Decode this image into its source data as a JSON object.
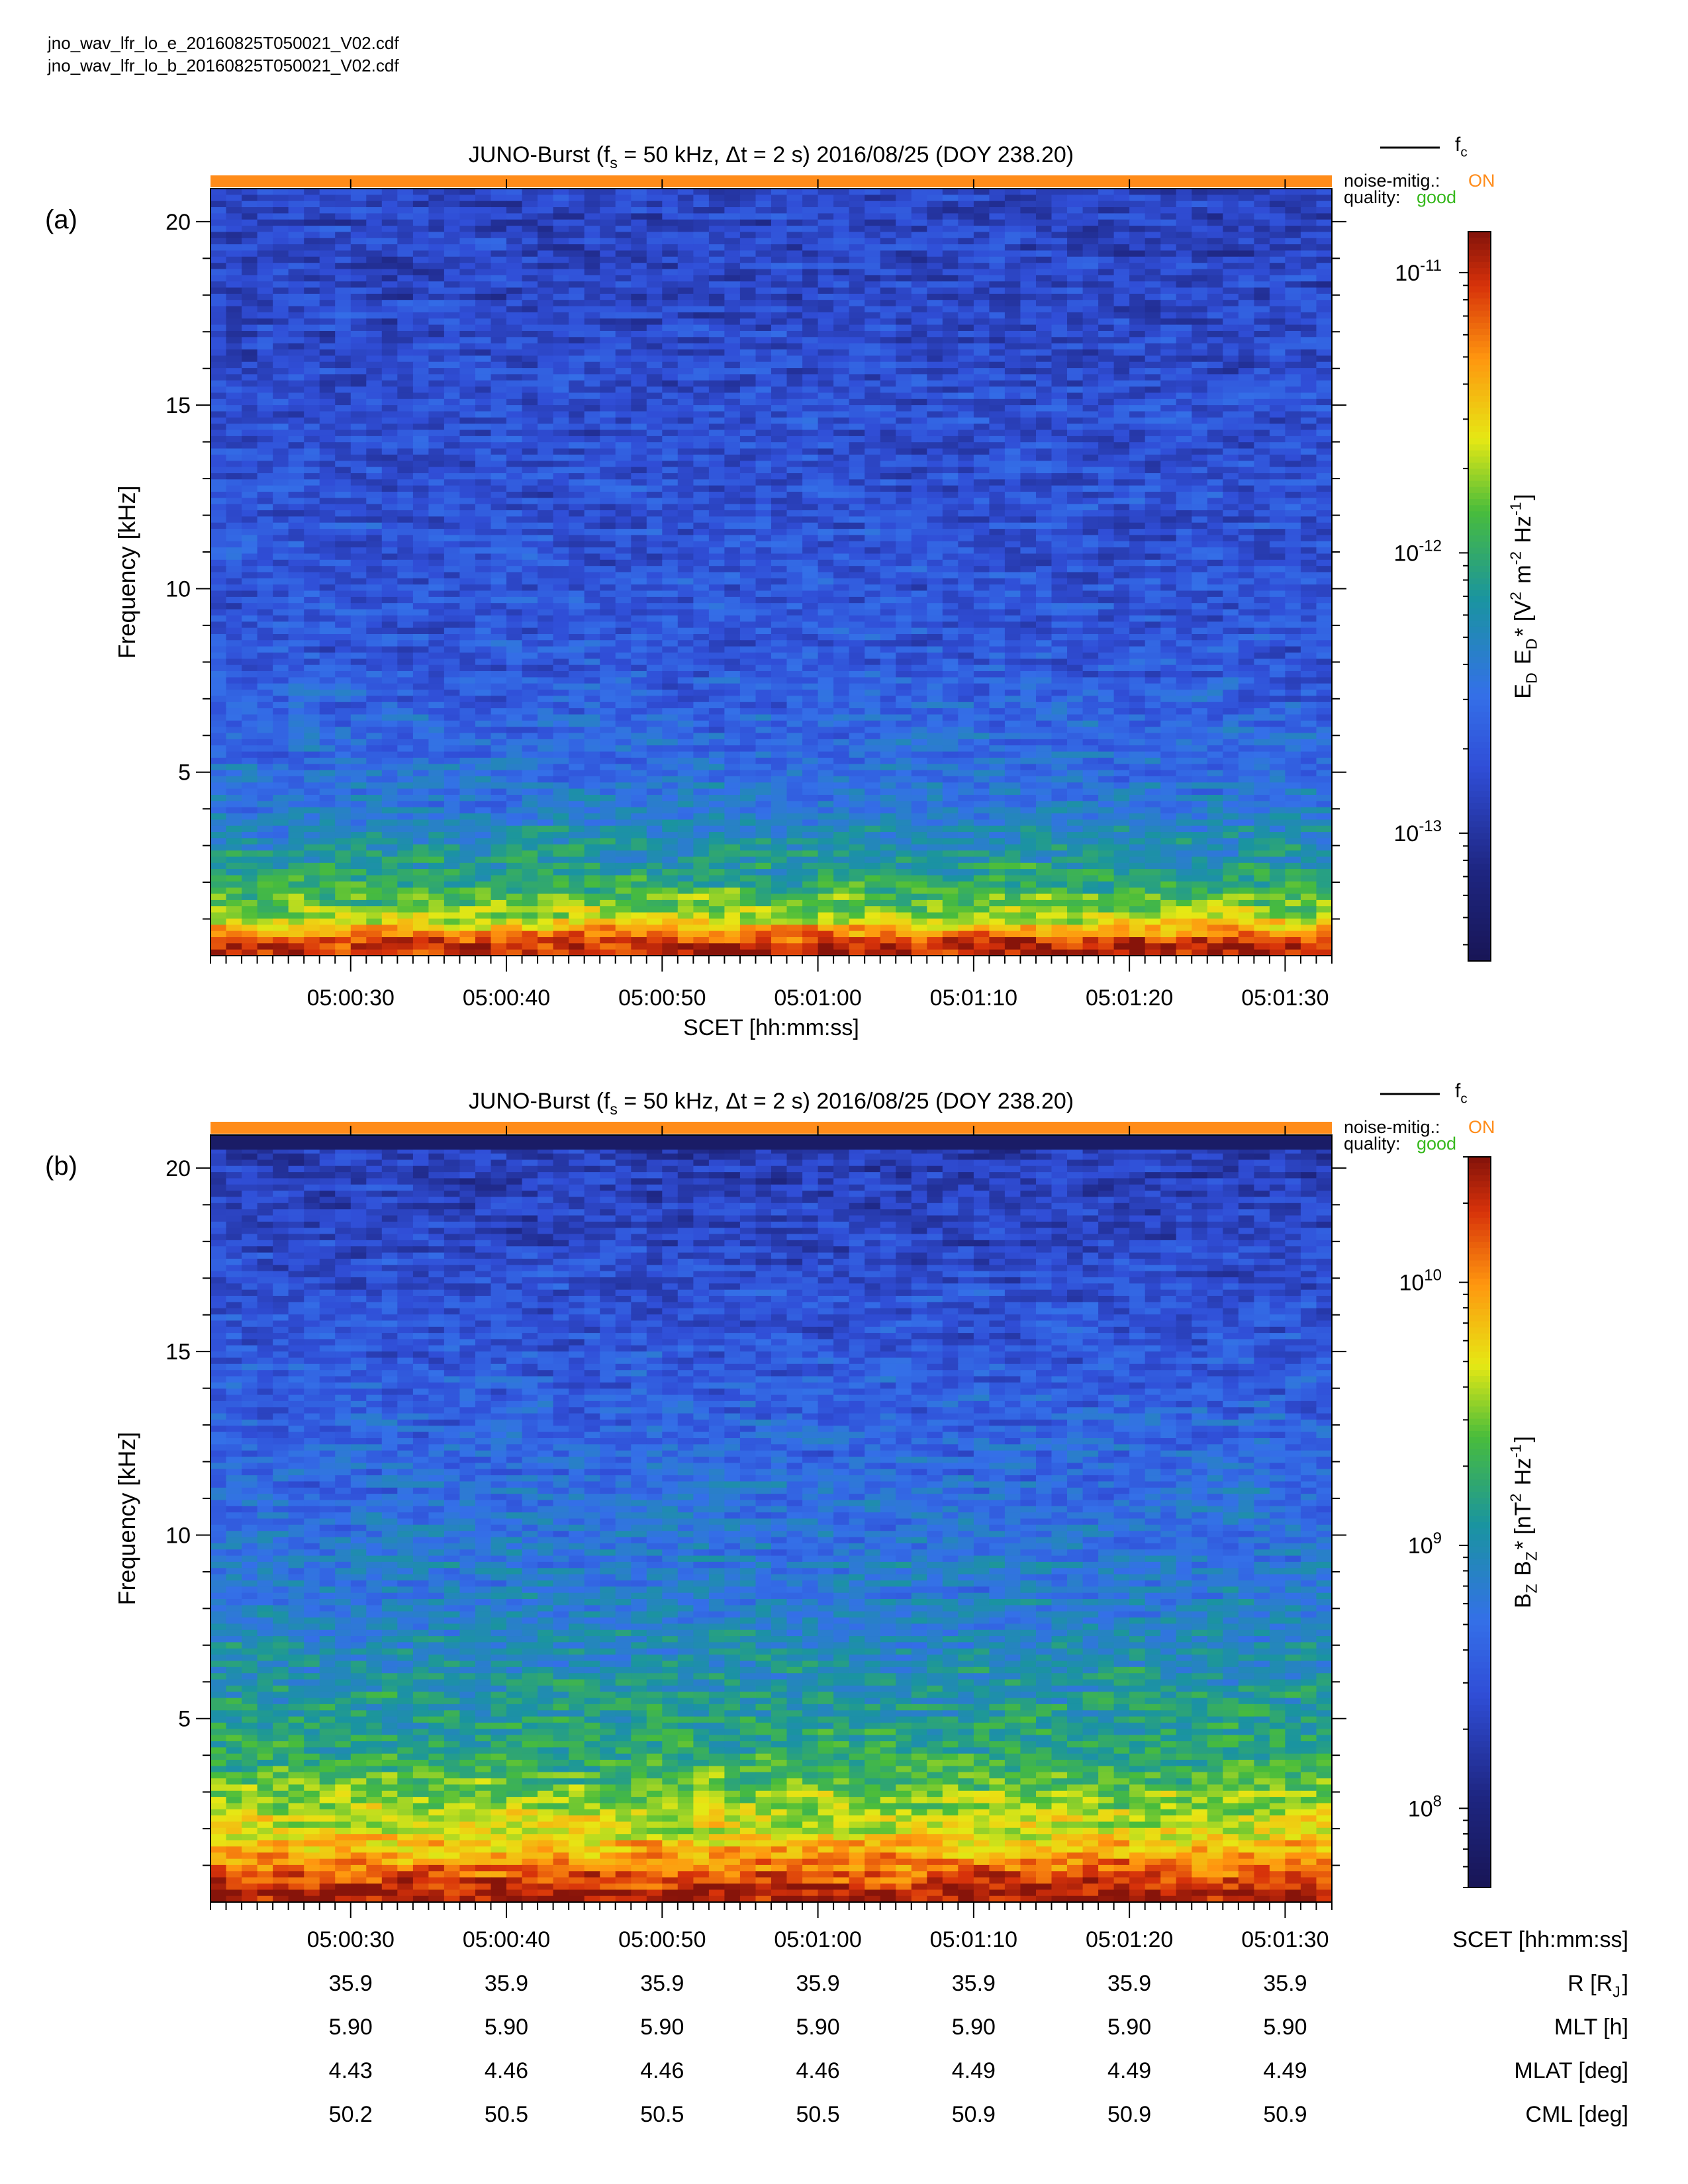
{
  "files": [
    "jno_wav_lfr_lo_e_20160825T050021_V02.cdf",
    "jno_wav_lfr_lo_b_20160825T050021_V02.cdf"
  ],
  "chart_data": [
    {
      "type": "heatmap",
      "panel_label": "(a)",
      "title": "JUNO-Burst (f_s = 50 kHz, Δt = 2 s)  2016/08/25 (DOY 238.20)",
      "legend_line": "f_c",
      "noise_mitig": {
        "label": "noise-mitig.:",
        "value": "ON"
      },
      "quality": {
        "label": "quality:",
        "value": "good"
      },
      "ylabel": "Frequency [kHz]",
      "xlabel": "SCET [hh:mm:ss]",
      "xlim": [
        "05:00:21",
        "05:01:33"
      ],
      "ylim": [
        0,
        20.9
      ],
      "yticks": [
        5,
        10,
        15,
        20
      ],
      "xticks": [
        "05:00:30",
        "05:00:40",
        "05:00:50",
        "05:01:00",
        "05:01:10",
        "05:01:20",
        "05:01:30"
      ],
      "colorbar": {
        "label": "E_D E_D* [V^2 m^-2 Hz^-1]",
        "scale": "log",
        "range": [
          3.5e-14,
          1.4e-11
        ],
        "ticks": [
          "10^-11",
          "10^-12",
          "10^-13"
        ]
      },
      "intensity_profile": [
        {
          "frequency_khz": 0.3,
          "level": 0.95
        },
        {
          "frequency_khz": 1,
          "level": 0.7
        },
        {
          "frequency_khz": 2,
          "level": 0.55
        },
        {
          "frequency_khz": 4,
          "level": 0.4
        },
        {
          "frequency_khz": 8,
          "level": 0.3
        },
        {
          "frequency_khz": 20,
          "level": 0.24
        }
      ]
    },
    {
      "type": "heatmap",
      "panel_label": "(b)",
      "title": "JUNO-Burst (f_s = 50 kHz, Δt = 2 s)  2016/08/25 (DOY 238.20)",
      "legend_line": "f_c",
      "noise_mitig": {
        "label": "noise-mitig.:",
        "value": "ON"
      },
      "quality": {
        "label": "quality:",
        "value": "good"
      },
      "ylabel": "Frequency [kHz]",
      "xlim": [
        "05:00:21",
        "05:01:33"
      ],
      "ylim": [
        0,
        20.9
      ],
      "yticks": [
        5,
        10,
        15,
        20
      ],
      "xticks": [
        "05:00:30",
        "05:00:40",
        "05:00:50",
        "05:01:00",
        "05:01:10",
        "05:01:20",
        "05:01:30"
      ],
      "colorbar": {
        "label": "B_Z B_Z* [nT^2 Hz^-1]",
        "scale": "log",
        "range": [
          50000000.0,
          30000000000.0
        ],
        "ticks": [
          "10^10",
          "10^9",
          "10^8"
        ]
      },
      "intensity_profile": [
        {
          "frequency_khz": 0.3,
          "level": 0.97
        },
        {
          "frequency_khz": 1,
          "level": 0.85
        },
        {
          "frequency_khz": 2,
          "level": 0.72
        },
        {
          "frequency_khz": 4,
          "level": 0.56
        },
        {
          "frequency_khz": 8,
          "level": 0.42
        },
        {
          "frequency_khz": 15,
          "level": 0.3
        },
        {
          "frequency_khz": 20,
          "level": 0.22
        }
      ],
      "ephemeris": {
        "rows": [
          {
            "label": "SCET [hh:mm:ss]",
            "values": [
              "05:00:30",
              "05:00:40",
              "05:00:50",
              "05:01:00",
              "05:01:10",
              "05:01:20",
              "05:01:30"
            ]
          },
          {
            "label": "R [R_J]",
            "values": [
              "35.9",
              "35.9",
              "35.9",
              "35.9",
              "35.9",
              "35.9",
              "35.9"
            ]
          },
          {
            "label": "MLT [h]",
            "values": [
              "5.90",
              "5.90",
              "5.90",
              "5.90",
              "5.90",
              "5.90",
              "5.90"
            ]
          },
          {
            "label": "MLAT [deg]",
            "values": [
              "4.43",
              "4.46",
              "4.46",
              "4.46",
              "4.49",
              "4.49",
              "4.49"
            ]
          },
          {
            "label": "CML [deg]",
            "values": [
              "50.2",
              "50.5",
              "50.5",
              "50.5",
              "50.9",
              "50.9",
              "50.9"
            ]
          }
        ]
      }
    }
  ],
  "colors": {
    "noise_bar": "#ff8c1a",
    "quality_bar": "#36b81c",
    "on_text": "#ff8c1a",
    "good_text": "#36b81c"
  }
}
